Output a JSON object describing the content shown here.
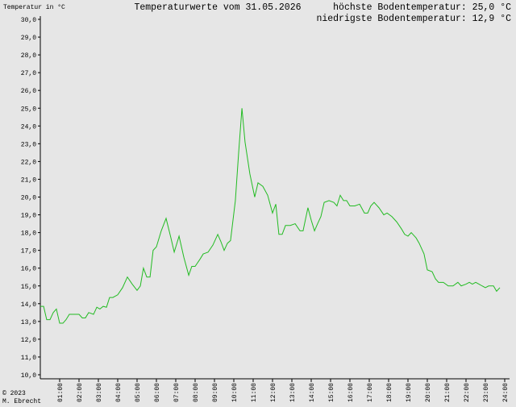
{
  "chart_data": {
    "type": "line",
    "title": "Temperaturwerte vom 31.05.2026",
    "y_label": "Temperatur in °C",
    "annotations": [
      "höchste Bodentemperatur: 25,0 °C",
      "niedrigste Bodentemperatur: 12,9 °C"
    ],
    "credits": [
      "© 2023",
      "M. Ebrecht"
    ],
    "color": "#22bb22",
    "xlim": [
      0,
      24
    ],
    "ylim": [
      10,
      30
    ],
    "xticks": [
      {
        "value": 1,
        "label": "01:00"
      },
      {
        "value": 2,
        "label": "02:00"
      },
      {
        "value": 3,
        "label": "03:00"
      },
      {
        "value": 4,
        "label": "04:00"
      },
      {
        "value": 5,
        "label": "05:00"
      },
      {
        "value": 6,
        "label": "06:00"
      },
      {
        "value": 7,
        "label": "07:00"
      },
      {
        "value": 8,
        "label": "08:00"
      },
      {
        "value": 9,
        "label": "09:00"
      },
      {
        "value": 10,
        "label": "10:00"
      },
      {
        "value": 11,
        "label": "11:00"
      },
      {
        "value": 12,
        "label": "12:00"
      },
      {
        "value": 13,
        "label": "13:00"
      },
      {
        "value": 14,
        "label": "14:00"
      },
      {
        "value": 15,
        "label": "15:00"
      },
      {
        "value": 16,
        "label": "16:00"
      },
      {
        "value": 17,
        "label": "17:00"
      },
      {
        "value": 18,
        "label": "18:00"
      },
      {
        "value": 19,
        "label": "19:00"
      },
      {
        "value": 20,
        "label": "20:00"
      },
      {
        "value": 21,
        "label": "21:00"
      },
      {
        "value": 22,
        "label": "22:00"
      },
      {
        "value": 23,
        "label": "23:00"
      },
      {
        "value": 24,
        "label": "24:00"
      }
    ],
    "yticks": [
      {
        "value": 10,
        "label": "10,0"
      },
      {
        "value": 11,
        "label": "11,0"
      },
      {
        "value": 12,
        "label": "12,0"
      },
      {
        "value": 13,
        "label": "13,0"
      },
      {
        "value": 14,
        "label": "14,0"
      },
      {
        "value": 15,
        "label": "15,0"
      },
      {
        "value": 16,
        "label": "16,0"
      },
      {
        "value": 17,
        "label": "17,0"
      },
      {
        "value": 18,
        "label": "18,0"
      },
      {
        "value": 19,
        "label": "19,0"
      },
      {
        "value": 20,
        "label": "20,0"
      },
      {
        "value": 21,
        "label": "21,0"
      },
      {
        "value": 22,
        "label": "22,0"
      },
      {
        "value": 23,
        "label": "23,0"
      },
      {
        "value": 24,
        "label": "24,0"
      },
      {
        "value": 25,
        "label": "25,0"
      },
      {
        "value": 26,
        "label": "26,0"
      },
      {
        "value": 27,
        "label": "27,0"
      },
      {
        "value": 28,
        "label": "28,0"
      },
      {
        "value": 29,
        "label": "29,0"
      },
      {
        "value": 30,
        "label": "30,0"
      }
    ],
    "x": [
      0,
      0.17,
      0.33,
      0.5,
      0.67,
      0.83,
      1.0,
      1.17,
      1.33,
      1.5,
      1.75,
      2.0,
      2.17,
      2.33,
      2.5,
      2.75,
      2.92,
      3.08,
      3.25,
      3.42,
      3.58,
      3.75,
      4.0,
      4.25,
      4.5,
      4.75,
      5.0,
      5.17,
      5.33,
      5.5,
      5.67,
      5.83,
      6.0,
      6.25,
      6.5,
      6.75,
      6.92,
      7.17,
      7.42,
      7.67,
      7.83,
      8.0,
      8.25,
      8.42,
      8.67,
      8.92,
      9.17,
      9.33,
      9.5,
      9.67,
      9.83,
      10.08,
      10.25,
      10.42,
      10.58,
      10.83,
      11.08,
      11.25,
      11.5,
      11.75,
      12.0,
      12.17,
      12.33,
      12.5,
      12.67,
      12.92,
      13.17,
      13.42,
      13.58,
      13.83,
      14.0,
      14.17,
      14.33,
      14.5,
      14.67,
      14.92,
      15.17,
      15.33,
      15.5,
      15.67,
      15.83,
      16.0,
      16.25,
      16.5,
      16.75,
      16.92,
      17.08,
      17.25,
      17.5,
      17.75,
      17.92,
      18.17,
      18.42,
      18.67,
      18.83,
      19.0,
      19.17,
      19.42,
      19.58,
      19.83,
      20.0,
      20.25,
      20.42,
      20.58,
      20.83,
      21.08,
      21.33,
      21.58,
      21.75,
      22.0,
      22.17,
      22.33,
      22.5,
      22.67,
      22.83,
      23.0,
      23.17,
      23.42,
      23.58,
      23.75
    ],
    "values": [
      13.85,
      13.85,
      13.1,
      13.1,
      13.5,
      13.7,
      12.9,
      12.9,
      13.1,
      13.4,
      13.4,
      13.4,
      13.2,
      13.2,
      13.5,
      13.4,
      13.8,
      13.7,
      13.85,
      13.8,
      14.35,
      14.35,
      14.5,
      14.9,
      15.5,
      15.1,
      14.75,
      15.0,
      16.0,
      15.5,
      15.5,
      17.0,
      17.2,
      18.1,
      18.8,
      17.7,
      16.9,
      17.8,
      16.6,
      15.6,
      16.1,
      16.1,
      16.5,
      16.8,
      16.9,
      17.3,
      17.9,
      17.5,
      17.0,
      17.4,
      17.55,
      19.8,
      22.5,
      25.0,
      23.1,
      21.3,
      20.0,
      20.8,
      20.6,
      20.1,
      19.1,
      19.6,
      17.9,
      17.9,
      18.4,
      18.4,
      18.5,
      18.1,
      18.1,
      19.4,
      18.7,
      18.1,
      18.5,
      18.9,
      19.7,
      19.8,
      19.7,
      19.5,
      20.1,
      19.8,
      19.8,
      19.5,
      19.5,
      19.6,
      19.1,
      19.1,
      19.5,
      19.7,
      19.4,
      19.0,
      19.1,
      18.9,
      18.6,
      18.2,
      17.9,
      17.8,
      18.0,
      17.7,
      17.4,
      16.8,
      15.9,
      15.8,
      15.4,
      15.2,
      15.2,
      15.0,
      15.0,
      15.2,
      15.0,
      15.1,
      15.2,
      15.1,
      15.2,
      15.1,
      15.0,
      14.9,
      15.0,
      15.0,
      14.7,
      14.9
    ]
  }
}
